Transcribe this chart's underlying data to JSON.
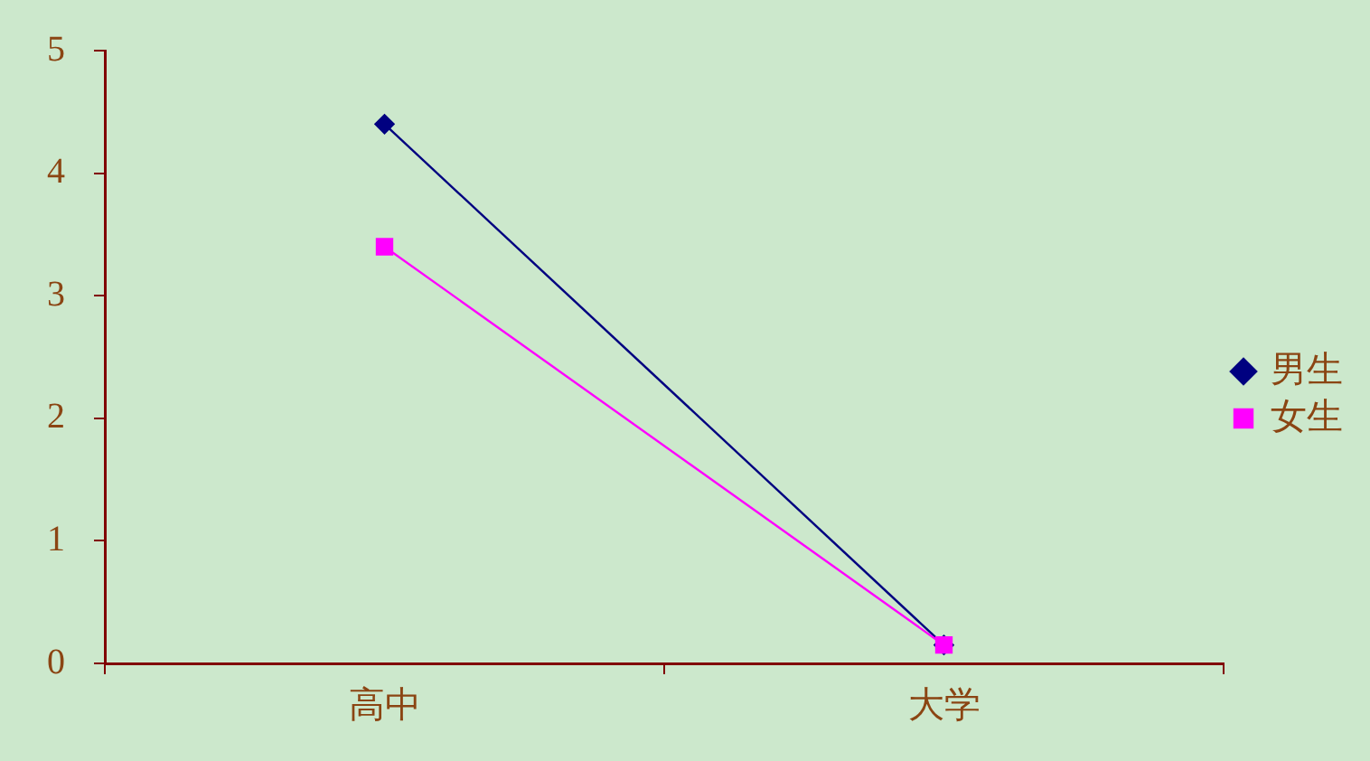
{
  "chart_data": {
    "type": "line",
    "categories": [
      "高中",
      "大学"
    ],
    "series": [
      {
        "name": "男生",
        "color": "#000080",
        "values": [
          4.4,
          0.15
        ],
        "marker": "diamond"
      },
      {
        "name": "女生",
        "color": "#ff00ff",
        "values": [
          3.4,
          0.15
        ],
        "marker": "square"
      }
    ],
    "ylim": [
      0,
      5
    ],
    "yticks": [
      0,
      1,
      2,
      3,
      4,
      5
    ],
    "grid": false,
    "legend": "right",
    "line_style": "solid"
  }
}
